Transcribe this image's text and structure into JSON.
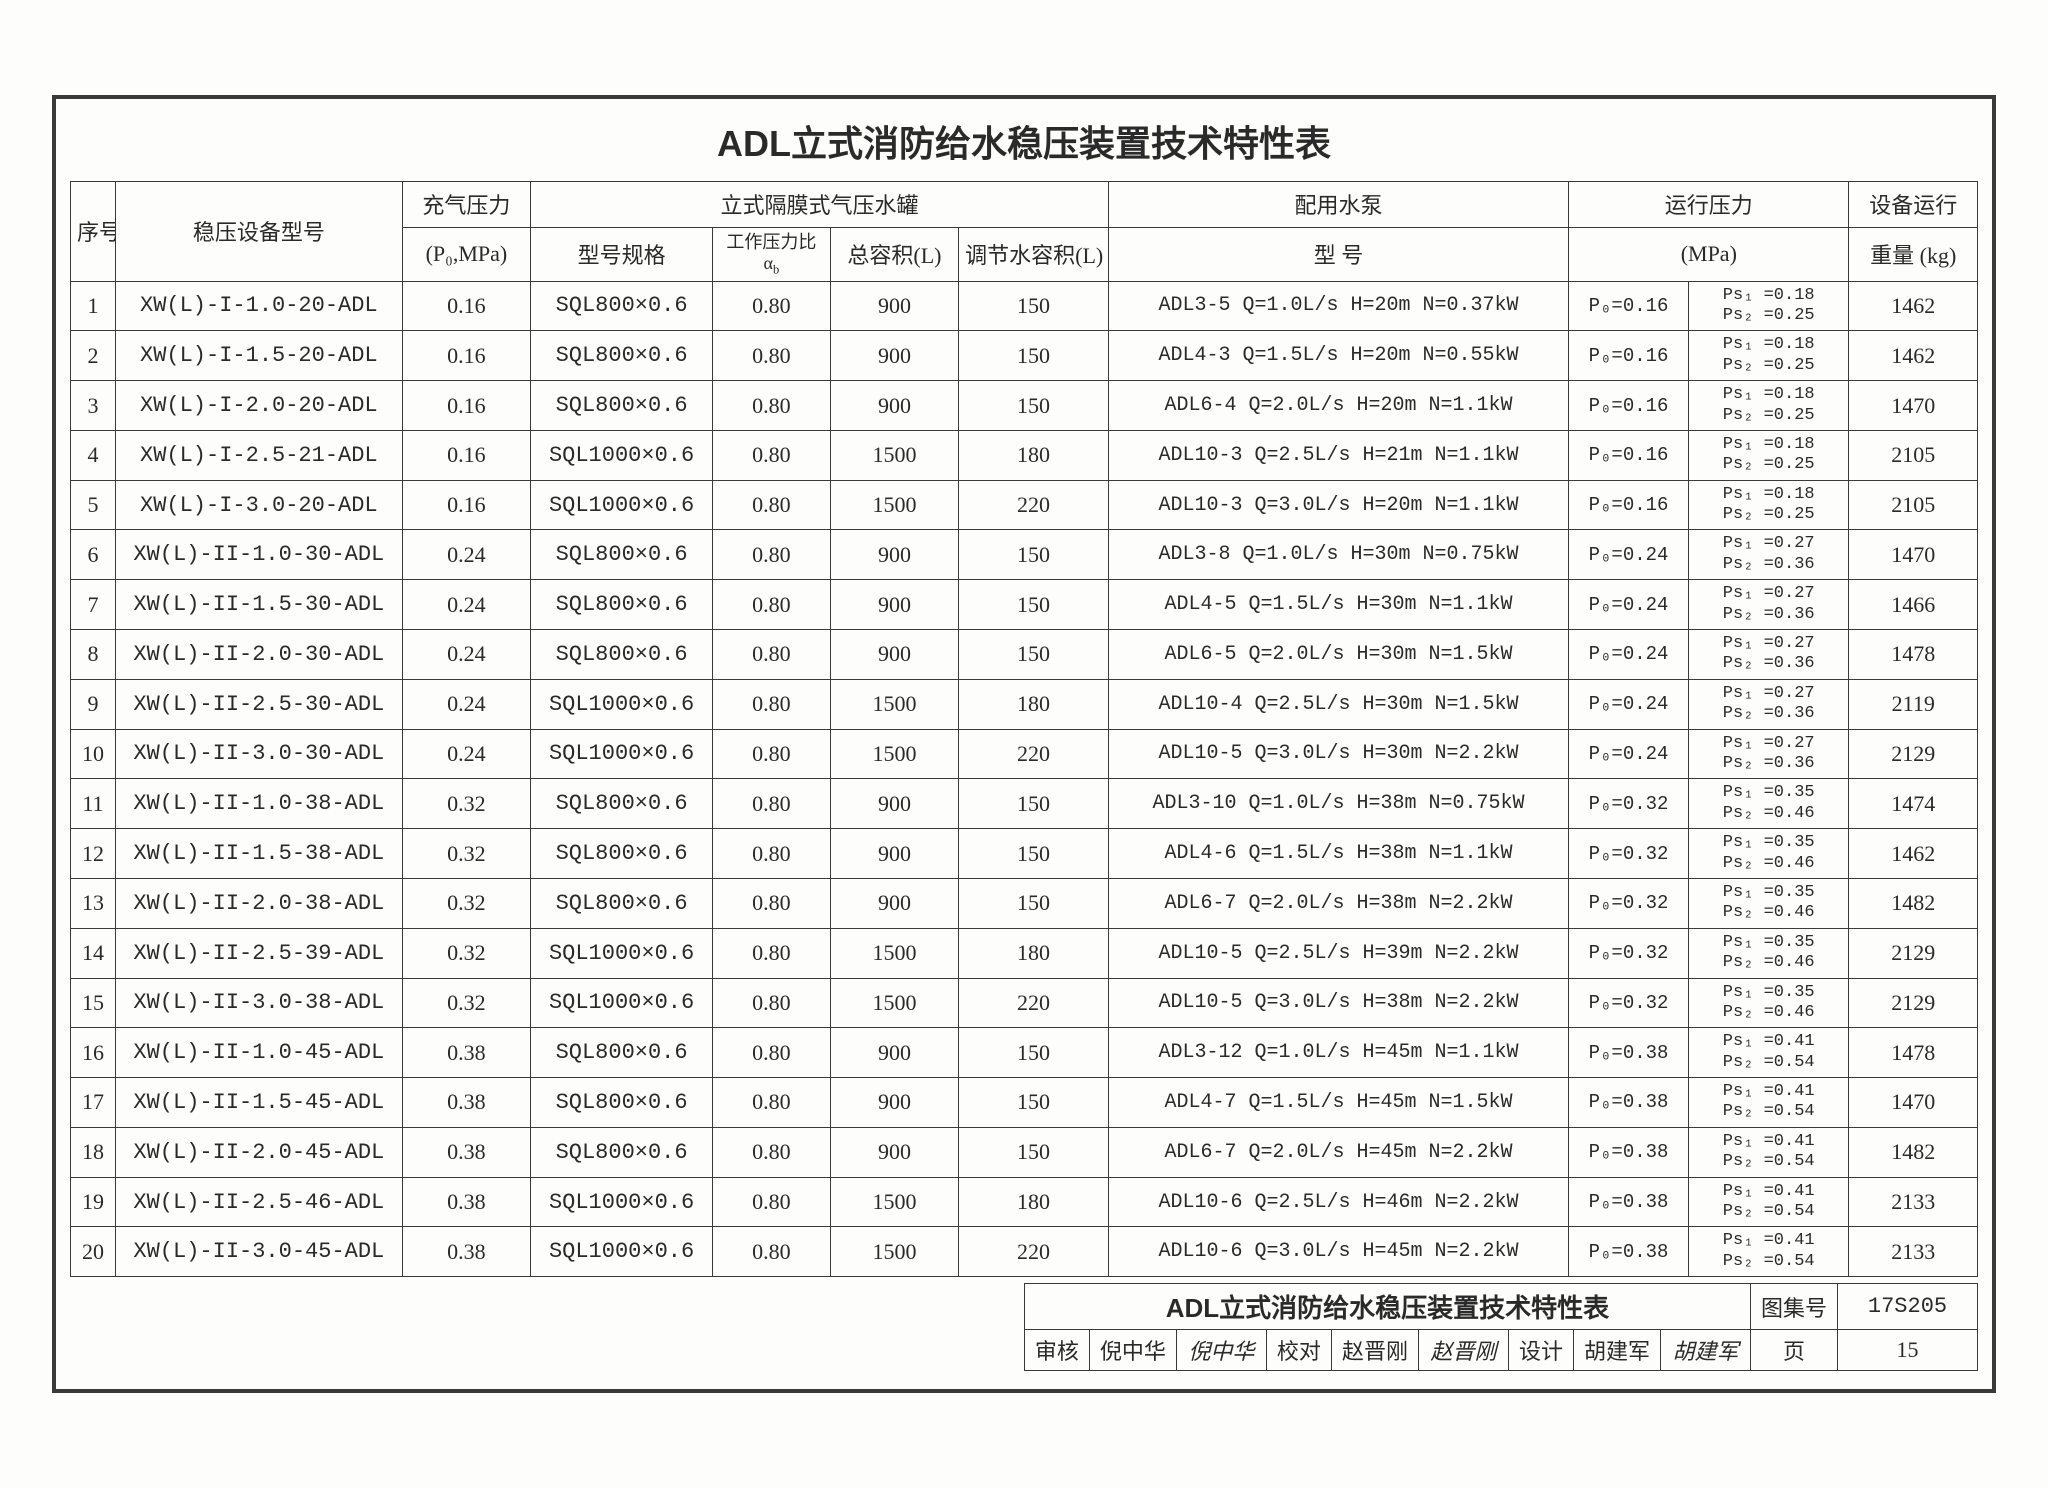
{
  "title": "ADL立式消防给水稳压装置技术特性表",
  "header": {
    "seq": "序号",
    "model": "稳压设备型号",
    "p0": "充气压力",
    "p0_unit": "(P₀,MPa)",
    "tank_group": "立式隔膜式气压水罐",
    "tank_model": "型号规格",
    "ab": "工作压力比 αb",
    "vtot": "总容积(L)",
    "vreg": "调节水容积(L)",
    "pump_group": "配用水泵",
    "pump_model": "型  号",
    "op_group": "运行压力",
    "op_unit": "(MPa)",
    "wt": "设备运行重量 (kg)"
  },
  "rows": [
    {
      "n": "1",
      "model": "XW(L)-I-1.0-20-ADL",
      "p0": "0.16",
      "tank": "SQL800×0.6",
      "ab": "0.80",
      "vt": "900",
      "vr": "150",
      "pump": "ADL3-5  Q=1.0L/s  H=20m  N=0.37kW",
      "opP0": "P₀=0.16",
      "ps1": "Ps₁ =0.18",
      "ps2": "Ps₂ =0.25",
      "wt": "1462"
    },
    {
      "n": "2",
      "model": "XW(L)-I-1.5-20-ADL",
      "p0": "0.16",
      "tank": "SQL800×0.6",
      "ab": "0.80",
      "vt": "900",
      "vr": "150",
      "pump": "ADL4-3  Q=1.5L/s  H=20m  N=0.55kW",
      "opP0": "P₀=0.16",
      "ps1": "Ps₁ =0.18",
      "ps2": "Ps₂ =0.25",
      "wt": "1462"
    },
    {
      "n": "3",
      "model": "XW(L)-I-2.0-20-ADL",
      "p0": "0.16",
      "tank": "SQL800×0.6",
      "ab": "0.80",
      "vt": "900",
      "vr": "150",
      "pump": "ADL6-4  Q=2.0L/s  H=20m  N=1.1kW",
      "opP0": "P₀=0.16",
      "ps1": "Ps₁ =0.18",
      "ps2": "Ps₂ =0.25",
      "wt": "1470"
    },
    {
      "n": "4",
      "model": "XW(L)-I-2.5-21-ADL",
      "p0": "0.16",
      "tank": "SQL1000×0.6",
      "ab": "0.80",
      "vt": "1500",
      "vr": "180",
      "pump": "ADL10-3  Q=2.5L/s  H=21m  N=1.1kW",
      "opP0": "P₀=0.16",
      "ps1": "Ps₁ =0.18",
      "ps2": "Ps₂ =0.25",
      "wt": "2105"
    },
    {
      "n": "5",
      "model": "XW(L)-I-3.0-20-ADL",
      "p0": "0.16",
      "tank": "SQL1000×0.6",
      "ab": "0.80",
      "vt": "1500",
      "vr": "220",
      "pump": "ADL10-3  Q=3.0L/s  H=20m  N=1.1kW",
      "opP0": "P₀=0.16",
      "ps1": "Ps₁ =0.18",
      "ps2": "Ps₂ =0.25",
      "wt": "2105"
    },
    {
      "n": "6",
      "model": "XW(L)-II-1.0-30-ADL",
      "p0": "0.24",
      "tank": "SQL800×0.6",
      "ab": "0.80",
      "vt": "900",
      "vr": "150",
      "pump": "ADL3-8  Q=1.0L/s  H=30m  N=0.75kW",
      "opP0": "P₀=0.24",
      "ps1": "Ps₁ =0.27",
      "ps2": "Ps₂ =0.36",
      "wt": "1470"
    },
    {
      "n": "7",
      "model": "XW(L)-II-1.5-30-ADL",
      "p0": "0.24",
      "tank": "SQL800×0.6",
      "ab": "0.80",
      "vt": "900",
      "vr": "150",
      "pump": "ADL4-5  Q=1.5L/s  H=30m  N=1.1kW",
      "opP0": "P₀=0.24",
      "ps1": "Ps₁ =0.27",
      "ps2": "Ps₂ =0.36",
      "wt": "1466"
    },
    {
      "n": "8",
      "model": "XW(L)-II-2.0-30-ADL",
      "p0": "0.24",
      "tank": "SQL800×0.6",
      "ab": "0.80",
      "vt": "900",
      "vr": "150",
      "pump": "ADL6-5  Q=2.0L/s  H=30m  N=1.5kW",
      "opP0": "P₀=0.24",
      "ps1": "Ps₁ =0.27",
      "ps2": "Ps₂ =0.36",
      "wt": "1478"
    },
    {
      "n": "9",
      "model": "XW(L)-II-2.5-30-ADL",
      "p0": "0.24",
      "tank": "SQL1000×0.6",
      "ab": "0.80",
      "vt": "1500",
      "vr": "180",
      "pump": "ADL10-4  Q=2.5L/s  H=30m  N=1.5kW",
      "opP0": "P₀=0.24",
      "ps1": "Ps₁ =0.27",
      "ps2": "Ps₂ =0.36",
      "wt": "2119"
    },
    {
      "n": "10",
      "model": "XW(L)-II-3.0-30-ADL",
      "p0": "0.24",
      "tank": "SQL1000×0.6",
      "ab": "0.80",
      "vt": "1500",
      "vr": "220",
      "pump": "ADL10-5  Q=3.0L/s  H=30m  N=2.2kW",
      "opP0": "P₀=0.24",
      "ps1": "Ps₁ =0.27",
      "ps2": "Ps₂ =0.36",
      "wt": "2129"
    },
    {
      "n": "11",
      "model": "XW(L)-II-1.0-38-ADL",
      "p0": "0.32",
      "tank": "SQL800×0.6",
      "ab": "0.80",
      "vt": "900",
      "vr": "150",
      "pump": "ADL3-10  Q=1.0L/s  H=38m  N=0.75kW",
      "opP0": "P₀=0.32",
      "ps1": "Ps₁ =0.35",
      "ps2": "Ps₂ =0.46",
      "wt": "1474"
    },
    {
      "n": "12",
      "model": "XW(L)-II-1.5-38-ADL",
      "p0": "0.32",
      "tank": "SQL800×0.6",
      "ab": "0.80",
      "vt": "900",
      "vr": "150",
      "pump": "ADL4-6  Q=1.5L/s  H=38m  N=1.1kW",
      "opP0": "P₀=0.32",
      "ps1": "Ps₁ =0.35",
      "ps2": "Ps₂ =0.46",
      "wt": "1462"
    },
    {
      "n": "13",
      "model": "XW(L)-II-2.0-38-ADL",
      "p0": "0.32",
      "tank": "SQL800×0.6",
      "ab": "0.80",
      "vt": "900",
      "vr": "150",
      "pump": "ADL6-7  Q=2.0L/s  H=38m  N=2.2kW",
      "opP0": "P₀=0.32",
      "ps1": "Ps₁ =0.35",
      "ps2": "Ps₂ =0.46",
      "wt": "1482"
    },
    {
      "n": "14",
      "model": "XW(L)-II-2.5-39-ADL",
      "p0": "0.32",
      "tank": "SQL1000×0.6",
      "ab": "0.80",
      "vt": "1500",
      "vr": "180",
      "pump": "ADL10-5  Q=2.5L/s  H=39m  N=2.2kW",
      "opP0": "P₀=0.32",
      "ps1": "Ps₁ =0.35",
      "ps2": "Ps₂ =0.46",
      "wt": "2129"
    },
    {
      "n": "15",
      "model": "XW(L)-II-3.0-38-ADL",
      "p0": "0.32",
      "tank": "SQL1000×0.6",
      "ab": "0.80",
      "vt": "1500",
      "vr": "220",
      "pump": "ADL10-5  Q=3.0L/s  H=38m  N=2.2kW",
      "opP0": "P₀=0.32",
      "ps1": "Ps₁ =0.35",
      "ps2": "Ps₂ =0.46",
      "wt": "2129"
    },
    {
      "n": "16",
      "model": "XW(L)-II-1.0-45-ADL",
      "p0": "0.38",
      "tank": "SQL800×0.6",
      "ab": "0.80",
      "vt": "900",
      "vr": "150",
      "pump": "ADL3-12  Q=1.0L/s  H=45m  N=1.1kW",
      "opP0": "P₀=0.38",
      "ps1": "Ps₁ =0.41",
      "ps2": "Ps₂ =0.54",
      "wt": "1478"
    },
    {
      "n": "17",
      "model": "XW(L)-II-1.5-45-ADL",
      "p0": "0.38",
      "tank": "SQL800×0.6",
      "ab": "0.80",
      "vt": "900",
      "vr": "150",
      "pump": "ADL4-7  Q=1.5L/s  H=45m  N=1.5kW",
      "opP0": "P₀=0.38",
      "ps1": "Ps₁ =0.41",
      "ps2": "Ps₂ =0.54",
      "wt": "1470"
    },
    {
      "n": "18",
      "model": "XW(L)-II-2.0-45-ADL",
      "p0": "0.38",
      "tank": "SQL800×0.6",
      "ab": "0.80",
      "vt": "900",
      "vr": "150",
      "pump": "ADL6-7  Q=2.0L/s  H=45m  N=2.2kW",
      "opP0": "P₀=0.38",
      "ps1": "Ps₁ =0.41",
      "ps2": "Ps₂ =0.54",
      "wt": "1482"
    },
    {
      "n": "19",
      "model": "XW(L)-II-2.5-46-ADL",
      "p0": "0.38",
      "tank": "SQL1000×0.6",
      "ab": "0.80",
      "vt": "1500",
      "vr": "180",
      "pump": "ADL10-6  Q=2.5L/s  H=46m  N=2.2kW",
      "opP0": "P₀=0.38",
      "ps1": "Ps₁ =0.41",
      "ps2": "Ps₂ =0.54",
      "wt": "2133"
    },
    {
      "n": "20",
      "model": "XW(L)-II-3.0-45-ADL",
      "p0": "0.38",
      "tank": "SQL1000×0.6",
      "ab": "0.80",
      "vt": "1500",
      "vr": "220",
      "pump": "ADL10-6  Q=3.0L/s  H=45m  N=2.2kW",
      "opP0": "P₀=0.38",
      "ps1": "Ps₁ =0.41",
      "ps2": "Ps₂ =0.54",
      "wt": "2133"
    }
  ],
  "footer": {
    "title": "ADL立式消防给水稳压装置技术特性表",
    "tuji_lbl": "图集号",
    "code": "17S205",
    "review_lbl": "审核",
    "review_name": "倪中华",
    "review_sig": "倪中华",
    "proof_lbl": "校对",
    "proof_name": "赵晋刚",
    "proof_sig": "赵晋刚",
    "design_lbl": "设计",
    "design_name": "胡建军",
    "design_sig": "胡建军",
    "page_lbl": "页",
    "page": "15"
  }
}
